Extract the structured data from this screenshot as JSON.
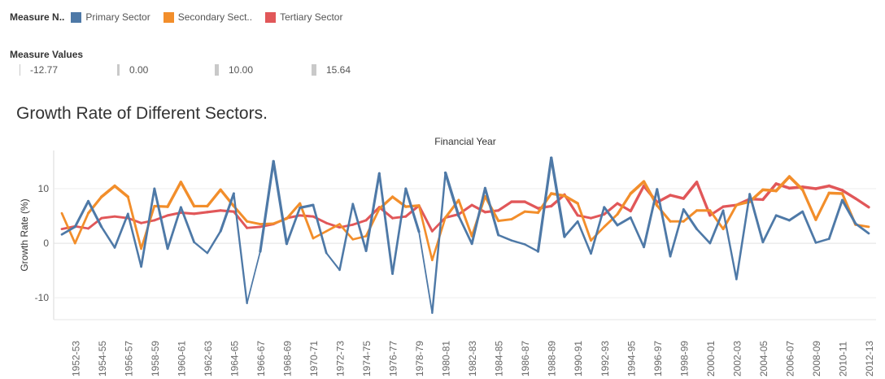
{
  "legend": {
    "title": "Measure N..",
    "items": [
      {
        "label": "Primary Sector",
        "color": "#4e79a7"
      },
      {
        "label": "Secondary Sect..",
        "color": "#f28e2b"
      },
      {
        "label": "Tertiary Sector",
        "color": "#e15759"
      }
    ]
  },
  "size_legend": {
    "title": "Measure Values",
    "items": [
      {
        "label": "-12.77",
        "value": -12.77
      },
      {
        "label": "0.00",
        "value": 0.0
      },
      {
        "label": "10.00",
        "value": 10.0
      },
      {
        "label": "15.64",
        "value": 15.64
      }
    ]
  },
  "chart_title": "Growth Rate of Different Sectors.",
  "chart_data": {
    "type": "line",
    "title": "Growth Rate of Different Sectors.",
    "xlabel": "Financial Year",
    "ylabel": "Growth Rate (%)",
    "ylim": [
      -14,
      17
    ],
    "yticks": [
      -10,
      0,
      10
    ],
    "grid": true,
    "legend_position": "top-left",
    "x": [
      "1951-52",
      "1952-53",
      "1953-54",
      "1954-55",
      "1955-56",
      "1956-57",
      "1957-58",
      "1958-59",
      "1959-60",
      "1960-61",
      "1961-62",
      "1962-63",
      "1963-64",
      "1964-65",
      "1965-66",
      "1966-67",
      "1967-68",
      "1968-69",
      "1969-70",
      "1970-71",
      "1971-72",
      "1972-73",
      "1973-74",
      "1974-75",
      "1975-76",
      "1976-77",
      "1977-78",
      "1978-79",
      "1979-80",
      "1980-81",
      "1981-82",
      "1982-83",
      "1983-84",
      "1984-85",
      "1985-86",
      "1986-87",
      "1987-88",
      "1988-89",
      "1989-90",
      "1990-91",
      "1991-92",
      "1992-93",
      "1993-94",
      "1994-95",
      "1995-96",
      "1996-97",
      "1997-98",
      "1998-99",
      "1999-00",
      "2000-01",
      "2001-02",
      "2002-03",
      "2003-04",
      "2004-05",
      "2005-06",
      "2006-07",
      "2007-08",
      "2008-09",
      "2009-10",
      "2010-11",
      "2011-12",
      "2012-13"
    ],
    "x_tick_labels": [
      "1952-53",
      "1954-55",
      "1956-57",
      "1958-59",
      "1960-61",
      "1962-63",
      "1964-65",
      "1966-67",
      "1968-69",
      "1970-71",
      "1972-73",
      "1974-75",
      "1976-77",
      "1978-79",
      "1980-81",
      "1982-83",
      "1984-85",
      "1986-87",
      "1988-89",
      "1990-91",
      "1992-93",
      "1994-95",
      "1996-97",
      "1998-99",
      "2000-01",
      "2002-03",
      "2004-05",
      "2006-07",
      "2008-09",
      "2010-11",
      "2012-13"
    ],
    "series": [
      {
        "name": "Primary Sector",
        "color": "#4e79a7",
        "values": [
          1.6,
          3.0,
          7.7,
          3.0,
          -0.8,
          5.4,
          -4.3,
          10.0,
          -1.0,
          6.6,
          0.2,
          -1.8,
          2.2,
          9.1,
          -11.0,
          -1.5,
          15.0,
          -0.1,
          6.5,
          7.0,
          -1.8,
          -4.9,
          7.2,
          -1.4,
          12.8,
          -5.6,
          10.0,
          2.1,
          -12.77,
          12.9,
          5.0,
          -0.1,
          10.1,
          1.5,
          0.5,
          -0.2,
          -1.5,
          15.64,
          1.2,
          4.0,
          -1.9,
          6.6,
          3.3,
          4.7,
          -0.7,
          9.9,
          -2.4,
          6.2,
          2.6,
          0.0,
          6.0,
          -6.6,
          9.0,
          0.2,
          5.1,
          4.2,
          5.8,
          0.1,
          0.8,
          7.9,
          3.6,
          1.8
        ]
      },
      {
        "name": "Secondary Sect..",
        "color": "#f28e2b",
        "values": [
          5.5,
          0.0,
          5.5,
          8.5,
          10.5,
          8.5,
          -1.0,
          6.8,
          6.7,
          11.2,
          6.8,
          6.8,
          9.8,
          6.8,
          4.0,
          3.5,
          3.6,
          4.5,
          7.3,
          0.9,
          2.2,
          3.5,
          0.7,
          1.3,
          6.3,
          8.5,
          6.7,
          6.9,
          -3.1,
          4.7,
          7.9,
          1.3,
          8.6,
          4.1,
          4.4,
          5.8,
          5.6,
          9.1,
          8.7,
          7.3,
          0.5,
          3.0,
          5.3,
          9.1,
          11.3,
          6.9,
          4.0,
          4.0,
          6.0,
          6.0,
          2.6,
          7.0,
          7.6,
          9.8,
          9.6,
          12.2,
          9.8,
          4.3,
          9.2,
          9.1,
          3.4,
          3.0
        ]
      },
      {
        "name": "Tertiary Sector",
        "color": "#e15759",
        "values": [
          2.6,
          3.1,
          2.7,
          4.6,
          4.9,
          4.6,
          3.7,
          4.2,
          5.1,
          5.6,
          5.4,
          5.7,
          6.0,
          5.8,
          2.8,
          3.0,
          3.5,
          4.6,
          5.1,
          4.9,
          3.7,
          2.9,
          3.4,
          4.2,
          6.6,
          4.6,
          4.9,
          6.9,
          2.2,
          4.7,
          5.3,
          7.0,
          5.7,
          6.0,
          7.6,
          7.6,
          6.4,
          6.8,
          8.9,
          5.1,
          4.6,
          5.3,
          7.3,
          5.9,
          10.5,
          7.5,
          8.8,
          8.2,
          11.2,
          5.1,
          6.7,
          7.0,
          8.1,
          8.0,
          10.9,
          10.1,
          10.3,
          10.0,
          10.5,
          9.7,
          8.2,
          6.6
        ]
      }
    ]
  }
}
